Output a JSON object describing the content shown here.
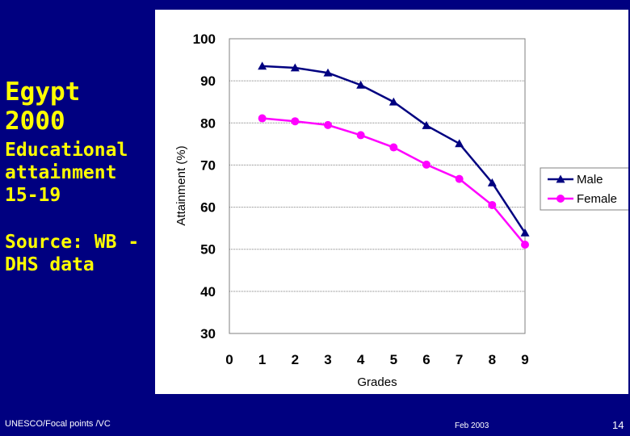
{
  "slide": {
    "title": "Egypt 2000",
    "subtitle": "Educational attainment 15-19",
    "source": "Source: WB - DHS data",
    "footer_left": "UNESCO/Focal points /VC",
    "footer_date": "Feb 2003",
    "page_number": "14"
  },
  "colors": {
    "background": "#000080",
    "slide_text": "#ffff00",
    "male_series": "#000080",
    "female_series": "#ff00ff"
  },
  "chart_data": {
    "type": "line",
    "xlabel": "Grades",
    "ylabel": "Attainment (%)",
    "xlim": [
      0,
      9
    ],
    "ylim": [
      30,
      100
    ],
    "x_ticks": [
      0,
      1,
      2,
      3,
      4,
      5,
      6,
      7,
      8,
      9
    ],
    "y_ticks": [
      30,
      40,
      50,
      60,
      70,
      80,
      90,
      100
    ],
    "grid": "horizontal",
    "legend_position": "right",
    "x": [
      1,
      2,
      3,
      4,
      5,
      6,
      7,
      8,
      9
    ],
    "series": [
      {
        "name": "Male",
        "marker": "triangle",
        "values": [
          93.5,
          93.1,
          91.9,
          89.0,
          85.0,
          79.4,
          75.1,
          65.8,
          53.9
        ]
      },
      {
        "name": "Female",
        "marker": "circle",
        "values": [
          81.1,
          80.4,
          79.5,
          77.1,
          74.2,
          70.1,
          66.7,
          60.5,
          51.1
        ]
      }
    ]
  }
}
